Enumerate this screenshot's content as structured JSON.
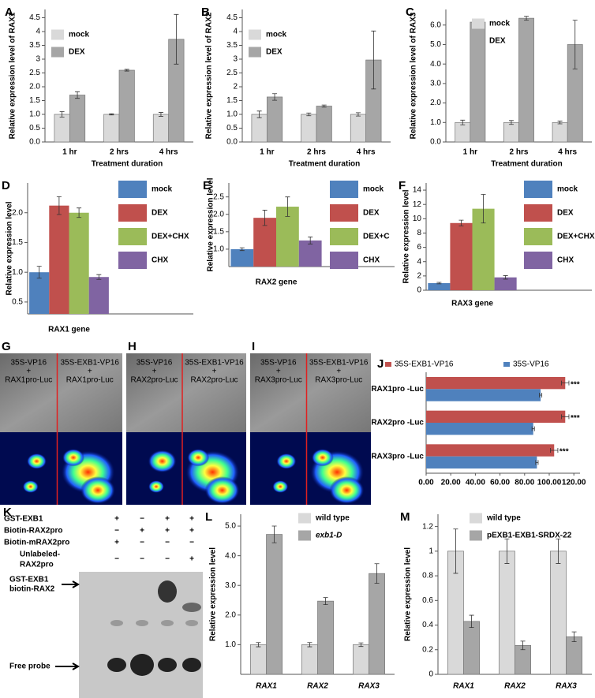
{
  "chart_data": [
    {
      "type": "bar",
      "panel": "A",
      "y_label": "Relative expression level of RAX1",
      "x_label": "Treatment duration",
      "categories": [
        "1 hr",
        "2 hrs",
        "4 hrs"
      ],
      "series": [
        {
          "name": "mock",
          "color": "#d9d9d9",
          "values": [
            1.0,
            1.0,
            1.0
          ],
          "errors": [
            0.1,
            0.02,
            0.07
          ]
        },
        {
          "name": "DEX",
          "color": "#a6a6a6",
          "values": [
            1.7,
            2.6,
            3.72
          ],
          "errors": [
            0.12,
            0.03,
            0.9
          ]
        }
      ],
      "ylim": [
        0,
        4.8
      ],
      "yticks": [
        {
          "value": 0,
          "label": "0.0"
        },
        0.5,
        {
          "value": 1,
          "label": "1.0"
        },
        1.5,
        {
          "value": 2,
          "label": "2.0"
        },
        2.5,
        3,
        3.5,
        4,
        4.5
      ]
    },
    {
      "type": "bar",
      "panel": "B",
      "y_label": "Relative expression level of RAX2",
      "x_label": "Treatment duration",
      "categories": [
        "1 hr",
        "2 hrs",
        "4 hrs"
      ],
      "series": [
        {
          "name": "mock",
          "color": "#d9d9d9",
          "values": [
            1.0,
            1.0,
            1.0
          ],
          "errors": [
            0.12,
            0.05,
            0.06
          ]
        },
        {
          "name": "DEX",
          "color": "#a6a6a6",
          "values": [
            1.63,
            1.3,
            2.97
          ],
          "errors": [
            0.12,
            0.04,
            1.05
          ]
        }
      ],
      "ylim": [
        0,
        4.8
      ],
      "yticks": [
        {
          "value": 0,
          "label": "0.0"
        },
        0.5,
        {
          "value": 1,
          "label": "1.0"
        },
        1.5,
        2,
        2.5,
        3,
        3.5,
        4,
        4.5
      ]
    },
    {
      "type": "bar",
      "panel": "C",
      "y_label": "Relative expression level of RAX3",
      "x_label": "Treatment duration",
      "categories": [
        "1 hr",
        "2 hrs",
        "4 hrs"
      ],
      "series": [
        {
          "name": "mock",
          "color": "#d9d9d9",
          "values": [
            1.0,
            1.0,
            1.0
          ],
          "errors": [
            0.12,
            0.1,
            0.07
          ]
        },
        {
          "name": "DEX",
          "color": "#a6a6a6",
          "values": [
            6.15,
            6.35,
            5.0
          ],
          "errors": [
            0.12,
            0.1,
            1.25
          ]
        }
      ],
      "ylim": [
        0,
        6.8
      ],
      "yticks": [
        {
          "value": 0,
          "label": "0.0"
        },
        {
          "value": 1,
          "label": "1.0"
        },
        {
          "value": 2,
          "label": "2.0"
        },
        {
          "value": 3,
          "label": "3.0"
        },
        {
          "value": 4,
          "label": "4.0"
        },
        {
          "value": 5,
          "label": "5.0"
        },
        {
          "value": 6,
          "label": "6.0"
        }
      ]
    },
    {
      "type": "bar",
      "panel": "D",
      "y_label": "Relative expression level",
      "x_label": "RAX1 gene",
      "categories": [
        null
      ],
      "series": [
        {
          "name": "mock",
          "color": "#4f81bd",
          "values": [
            1.0
          ],
          "errors": [
            0.1
          ]
        },
        {
          "name": "DEX",
          "color": "#c0504d",
          "values": [
            2.12
          ],
          "errors": [
            0.15
          ]
        },
        {
          "name": "DEX+CHX",
          "color": "#9bbb59",
          "values": [
            2.0
          ],
          "errors": [
            0.08
          ]
        },
        {
          "name": "CHX",
          "color": "#8064a2",
          "values": [
            0.92
          ],
          "errors": [
            0.04
          ]
        }
      ],
      "ylim": [
        0.3,
        2.5
      ],
      "yticks": [
        0.5,
        {
          "value": 1,
          "label": "1.0"
        },
        1.5,
        {
          "value": 2,
          "label": "2.0"
        }
      ]
    },
    {
      "type": "bar",
      "panel": "E",
      "y_label": "Relative expression level",
      "x_label": "RAX2 gene",
      "categories": [
        null
      ],
      "series": [
        {
          "name": "mock",
          "color": "#4f81bd",
          "values": [
            1.0
          ],
          "errors": [
            0.04
          ]
        },
        {
          "name": "DEX",
          "color": "#c0504d",
          "values": [
            1.9
          ],
          "errors": [
            0.22
          ]
        },
        {
          "name": "DEX+C",
          "color": "#9bbb59",
          "values": [
            2.22
          ],
          "errors": [
            0.28
          ]
        },
        {
          "name": "CHX",
          "color": "#8064a2",
          "values": [
            1.25
          ],
          "errors": [
            0.1
          ]
        }
      ],
      "ylim": [
        0.5,
        2.9
      ],
      "yticks": [
        {
          "value": 1,
          "label": "1.0"
        },
        1.5,
        {
          "value": 2,
          "label": "2.0"
        },
        2.5
      ]
    },
    {
      "type": "bar",
      "panel": "F",
      "y_label": "Relative expression level",
      "x_label": "RAX3 gene",
      "categories": [
        null
      ],
      "series": [
        {
          "name": "mock",
          "color": "#4f81bd",
          "values": [
            1.0
          ],
          "errors": [
            0.1
          ]
        },
        {
          "name": "DEX",
          "color": "#c0504d",
          "values": [
            9.4
          ],
          "errors": [
            0.4
          ]
        },
        {
          "name": "DEX+CHX",
          "color": "#9bbb59",
          "values": [
            11.4
          ],
          "errors": [
            2.0
          ]
        },
        {
          "name": "CHX",
          "color": "#8064a2",
          "values": [
            1.8
          ],
          "errors": [
            0.25
          ]
        }
      ],
      "ylim": [
        0,
        15
      ],
      "yticks": [
        0,
        2,
        4,
        6,
        8,
        10,
        12,
        14
      ]
    },
    {
      "type": "bar",
      "orientation": "horizontal",
      "panel": "J",
      "categories": [
        "RAX1pro -Luc",
        "RAX2pro -Luc",
        "RAX3pro -Luc"
      ],
      "series": [
        {
          "name": "35S-EXB1-VP16",
          "color": "#c0504d",
          "values": [
            113,
            113,
            104
          ],
          "errors": [
            3,
            3,
            3
          ]
        },
        {
          "name": "35S-VP16",
          "color": "#4f81bd",
          "values": [
            93,
            87,
            90
          ],
          "errors": [
            1,
            1,
            1
          ]
        }
      ],
      "annotations": [
        "***",
        "***",
        "***"
      ],
      "xlim": [
        0,
        125
      ],
      "xticks": [
        {
          "value": 0,
          "label": "0.00"
        },
        {
          "value": 20,
          "label": "20.00"
        },
        {
          "value": 40,
          "label": "40.00"
        },
        {
          "value": 60,
          "label": "60.00"
        },
        {
          "value": 80,
          "label": "80.00"
        },
        {
          "value": 100,
          "label": "100.00"
        },
        {
          "value": 120,
          "label": "120.00"
        }
      ]
    },
    {
      "type": "bar",
      "panel": "L",
      "y_label": "Relative expression level",
      "categories": [
        "RAX1",
        "RAX2",
        "RAX3"
      ],
      "series": [
        {
          "name": "wild type",
          "color": "#d9d9d9",
          "values": [
            1.0,
            1.0,
            1.0
          ],
          "errors": [
            0.07,
            0.07,
            0.06
          ]
        },
        {
          "name": "exb1-D",
          "color": "#a6a6a6",
          "values": [
            4.72,
            2.47,
            3.4
          ],
          "errors": [
            0.28,
            0.12,
            0.33
          ]
        }
      ],
      "ylim": [
        0,
        5.4
      ],
      "yticks": [
        {
          "value": 1,
          "label": "1.0"
        },
        {
          "value": 2,
          "label": "2.0"
        },
        {
          "value": 3,
          "label": "3.0"
        },
        {
          "value": 4,
          "label": "4.0"
        },
        {
          "value": 5,
          "label": "5.0"
        }
      ]
    },
    {
      "type": "bar",
      "panel": "M",
      "y_label": "Relative expression level",
      "categories": [
        "RAX1",
        "RAX2",
        "RAX3"
      ],
      "series": [
        {
          "name": "wild type",
          "color": "#d9d9d9",
          "values": [
            1.0,
            1.0,
            1.0
          ],
          "errors": [
            0.18,
            0.1,
            0.1
          ]
        },
        {
          "name": "pEXB1-EXB1-SRDX-22",
          "color": "#a6a6a6",
          "values": [
            0.43,
            0.235,
            0.305
          ],
          "errors": [
            0.05,
            0.035,
            0.04
          ]
        }
      ],
      "ylim": [
        0,
        1.3
      ],
      "yticks": [
        0,
        0.2,
        0.4,
        0.6,
        0.8,
        1,
        1.2
      ]
    }
  ],
  "images": [
    {
      "panel": "G",
      "left_label": [
        "35S-VP16",
        "+",
        "RAX1pro-Luc"
      ],
      "right_label": [
        "35S-EXB1-VP16",
        "+",
        "RAX1pro-Luc"
      ]
    },
    {
      "panel": "H",
      "left_label": [
        "35S-VP16",
        "+",
        "RAX2pro-Luc"
      ],
      "right_label": [
        "35S-EXB1-VP16",
        "+",
        "RAX2pro-Luc"
      ]
    },
    {
      "panel": "I",
      "left_label": [
        "35S-VP16",
        "+",
        "RAX3pro-Luc"
      ],
      "right_label": [
        "35S-EXB1-VP16",
        "+",
        "RAX3pro-Luc"
      ]
    }
  ],
  "gel": {
    "panel": "K",
    "rows": [
      {
        "label": [
          "GST-EXB1"
        ],
        "signs": [
          "+",
          "−",
          "+",
          "+"
        ]
      },
      {
        "label": [
          "Biotin-RAX2pro"
        ],
        "signs": [
          "−",
          "+",
          "+",
          "+"
        ]
      },
      {
        "label": [
          "Biotin-mRAX2pro"
        ],
        "signs": [
          "+",
          "−",
          "−",
          "−"
        ]
      },
      {
        "label": [
          "Unlabeled-",
          "RAX2pro"
        ],
        "signs": [
          "−",
          "−",
          "−",
          "+"
        ]
      }
    ],
    "shift_label": [
      "GST-EXB1",
      "biotin-RAX2"
    ],
    "free_label": "Free probe"
  }
}
